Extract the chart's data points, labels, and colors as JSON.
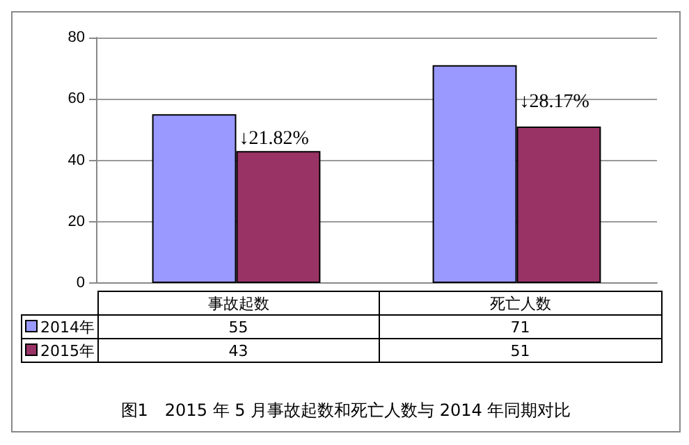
{
  "chart_data": {
    "type": "bar",
    "title": "图1　2015 年 5 月事故起数和死亡人数与 2014 年同期对比",
    "categories": [
      "事故起数",
      "死亡人数"
    ],
    "series": [
      {
        "name": "2014年",
        "color": "#9999ff",
        "values": [
          55,
          71
        ]
      },
      {
        "name": "2015年",
        "color": "#993366",
        "values": [
          43,
          51
        ]
      }
    ],
    "ylim": [
      0,
      80
    ],
    "yticks": [
      0,
      20,
      40,
      60,
      80
    ],
    "grid": "y",
    "legend": "bottom",
    "data_labels": true,
    "annotations": [
      {
        "text": "↓21.82%",
        "x": "事故起数",
        "y": 50
      },
      {
        "text": "↓28.17%",
        "x": "死亡人数",
        "y": 62
      }
    ]
  }
}
